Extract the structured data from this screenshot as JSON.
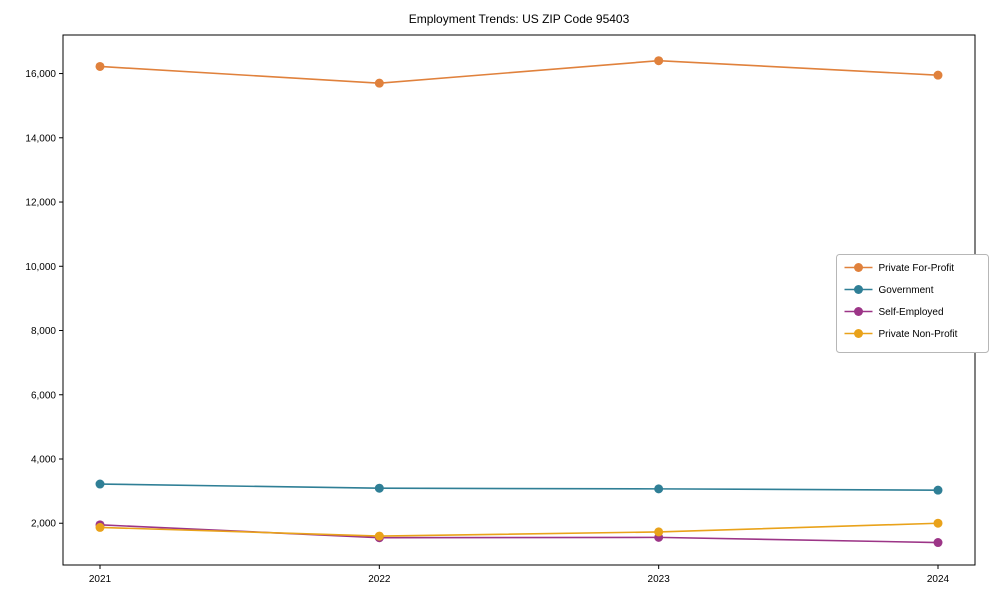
{
  "chart_data": {
    "type": "line",
    "title": "Employment Trends: US ZIP Code 95403",
    "x": [
      "2021",
      "2022",
      "2023",
      "2024"
    ],
    "xlabel": "",
    "ylabel": "",
    "ylim": [
      700,
      17200
    ],
    "yticks": [
      2000,
      4000,
      6000,
      8000,
      10000,
      12000,
      14000,
      16000
    ],
    "grid": false,
    "legend_position": "center right",
    "marker": "circle",
    "series": [
      {
        "name": "Private For-Profit",
        "color": "#e0813c",
        "values": [
          16220,
          15700,
          16400,
          15950
        ]
      },
      {
        "name": "Government",
        "color": "#2f7f96",
        "values": [
          3220,
          3090,
          3070,
          3030
        ]
      },
      {
        "name": "Self-Employed",
        "color": "#9c3587",
        "values": [
          1950,
          1550,
          1560,
          1400
        ]
      },
      {
        "name": "Private Non-Profit",
        "color": "#e9a21a",
        "values": [
          1870,
          1600,
          1730,
          2000
        ]
      }
    ]
  }
}
